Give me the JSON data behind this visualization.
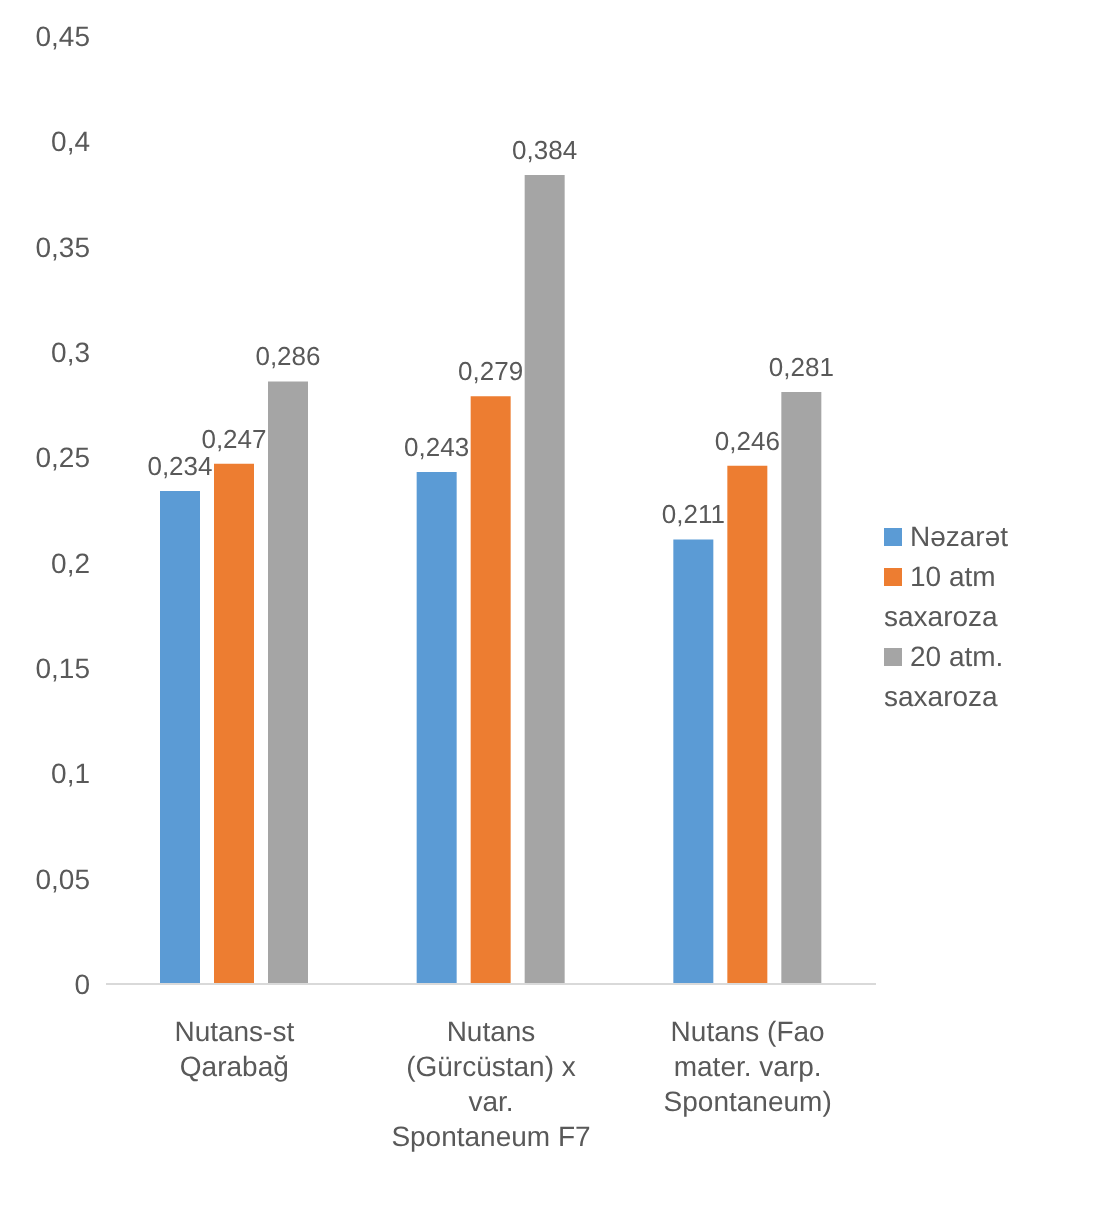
{
  "chart_data": {
    "type": "bar",
    "categories": [
      "Nutans-st Qarabağ",
      "Nutans (Gürcüstan) x var. Spontaneum F7",
      "Nutans (Fao mater. varp. Spontaneum)"
    ],
    "series": [
      {
        "name": "Nəzarət",
        "color": "#5b9bd5",
        "values": [
          0.234,
          0.243,
          0.211
        ],
        "value_labels": [
          "0,234",
          "0,243",
          "0,211"
        ]
      },
      {
        "name": "10 atm saxaroza",
        "color": "#ed7d31",
        "values": [
          0.247,
          0.279,
          0.246
        ],
        "value_labels": [
          "0,247",
          "0,279",
          "0,246"
        ]
      },
      {
        "name": "20 atm. saxaroza",
        "color": "#a5a5a5",
        "values": [
          0.286,
          0.384,
          0.281
        ],
        "value_labels": [
          "0,286",
          "0,384",
          "0,281"
        ]
      }
    ],
    "ylim": [
      0,
      0.45
    ],
    "yticks": [
      {
        "value": 0,
        "label": "0"
      },
      {
        "value": 0.05,
        "label": "0,05"
      },
      {
        "value": 0.1,
        "label": "0,1"
      },
      {
        "value": 0.15,
        "label": "0,15"
      },
      {
        "value": 0.2,
        "label": "0,2"
      },
      {
        "value": 0.25,
        "label": "0,25"
      },
      {
        "value": 0.3,
        "label": "0,3"
      },
      {
        "value": 0.35,
        "label": "0,35"
      },
      {
        "value": 0.4,
        "label": "0,4"
      },
      {
        "value": 0.45,
        "label": "0,45"
      }
    ],
    "grid": false,
    "legend": "right"
  }
}
